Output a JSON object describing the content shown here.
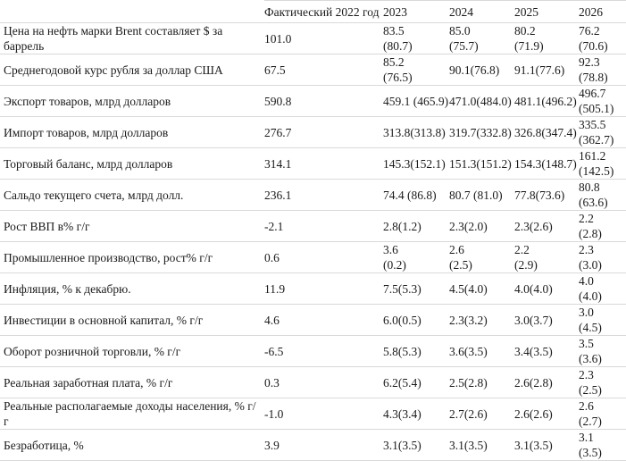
{
  "colors": {
    "background": "#ffffff",
    "text": "#1a1a1a",
    "row_border": "#d9d9d9"
  },
  "chart_data": {
    "type": "table",
    "note_format": "values shown as forecast with alternative forecast in parentheses; \\n marks a line break inside a cell",
    "columns": [
      "",
      "Фактический 2022 год",
      "2023",
      "2024",
      "2025",
      "2026"
    ],
    "rows": [
      {
        "label": "Цена на нефть марки Brent составляет $ за баррель",
        "values": [
          "101.0",
          "83.5\n(80.7)",
          "85.0\n(75.7)",
          "80.2\n(71.9)",
          "76.2\n(70.6)"
        ]
      },
      {
        "label": "Среднегодовой курс рубля за доллар США",
        "values": [
          "67.5",
          "85.2\n(76.5)",
          "90.1(76.8)",
          "91.1(77.6)",
          "92.3\n(78.8)"
        ]
      },
      {
        "label": "Экспорт товаров, млрд долларов",
        "values": [
          "590.8",
          "459.1 (465.9)",
          "471.0(484.0)",
          "481.1(496.2)",
          "496.7\n(505.1)"
        ]
      },
      {
        "label": "Импорт товаров, млрд долларов",
        "values": [
          "276.7",
          "313.8(313.8)",
          "319.7(332.8)",
          "326.8(347.4)",
          "335.5\n(362.7)"
        ]
      },
      {
        "label": "Торговый баланс, млрд долларов",
        "values": [
          "314.1",
          "145.3(152.1)",
          "151.3(151.2)",
          "154.3(148.7)",
          "161.2\n(142.5)"
        ]
      },
      {
        "label": "Сальдо текущего счета, млрд долл.",
        "values": [
          "236.1",
          "74.4 (86.8)",
          "80.7 (81.0)",
          "77.8(73.6)",
          "80.8\n(63.6)"
        ]
      },
      {
        "label": "Рост ВВП в% г/г",
        "values": [
          "-2.1",
          "2.8(1.2)",
          "2.3(2.0)",
          "2.3(2.6)",
          "2.2\n(2.8)"
        ]
      },
      {
        "label": "Промышленное производство, рост% г/г",
        "values": [
          "0.6",
          "3.6\n(0.2)",
          "2.6\n(2.5)",
          "2.2\n(2.9)",
          "2.3\n(3.0)"
        ]
      },
      {
        "label": "Инфляция, % к декабрю.",
        "values": [
          "11.9",
          "7.5(5.3)",
          "4.5(4.0)",
          "4.0(4.0)",
          "4.0\n(4.0)"
        ]
      },
      {
        "label": "Инвестиции в основной капитал, % г/г",
        "values": [
          "4.6",
          "6.0(0.5)",
          "2.3(3.2)",
          "3.0(3.7)",
          "3.0\n(4.5)"
        ]
      },
      {
        "label": "Оборот розничной торговли, % г/г",
        "values": [
          "-6.5",
          "5.8(5.3)",
          "3.6(3.5)",
          "3.4(3.5)",
          "3.5\n(3.6)"
        ]
      },
      {
        "label": "Реальная заработная плата, % г/г",
        "values": [
          "0.3",
          "6.2(5.4)",
          "2.5(2.8)",
          "2.6(2.8)",
          "2.3\n(2.5)"
        ]
      },
      {
        "label": "Реальные располагаемые доходы населения, % г/г",
        "values": [
          "-1.0",
          "4.3(3.4)",
          "2.7(2.6)",
          "2.6(2.6)",
          "2.6\n(2.7)"
        ]
      },
      {
        "label": "Безработица, %",
        "values": [
          "3.9",
          "3.1(3.5)",
          "3.1(3.5)",
          "3.1(3.5)",
          "3.1\n(3.5)"
        ]
      }
    ]
  }
}
